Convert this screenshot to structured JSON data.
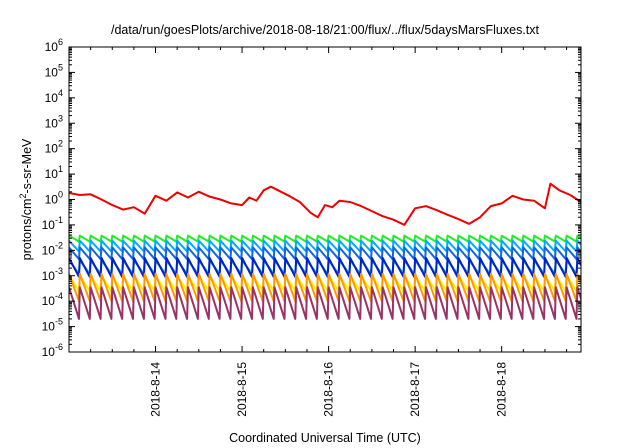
{
  "chart_data": {
    "type": "line",
    "title": "/data/run/goesPlots/archive/2018-08-18/21:00/flux/../flux/5daysMarsFluxes.txt",
    "xlabel": "Coordinated Universal Time (UTC)",
    "ylabel": {
      "prefix": "protons/cm",
      "sup": "2",
      "suffix": "-s-sr-MeV"
    },
    "x_scale": "time",
    "xlim": [
      "2018-08-13 00:00",
      "2018-08-18 22:00"
    ],
    "x_tick_labels": [
      "2018-8-14",
      "2018-8-15",
      "2018-8-16",
      "2018-8-17",
      "2018-8-18"
    ],
    "y_scale": "log",
    "ylim": [
      1e-06,
      1000000.0
    ],
    "y_tick_labels": [
      {
        "base": "10",
        "exp": "-6"
      },
      {
        "base": "10",
        "exp": "-5"
      },
      {
        "base": "10",
        "exp": "-4"
      },
      {
        "base": "10",
        "exp": "-3"
      },
      {
        "base": "10",
        "exp": "-2"
      },
      {
        "base": "10",
        "exp": "-1"
      },
      {
        "base": "10",
        "exp": "0"
      },
      {
        "base": "10",
        "exp": "1"
      },
      {
        "base": "10",
        "exp": "2"
      },
      {
        "base": "10",
        "exp": "3"
      },
      {
        "base": "10",
        "exp": "4"
      },
      {
        "base": "10",
        "exp": "5"
      },
      {
        "base": "10",
        "exp": "6"
      }
    ],
    "grid": false,
    "legend": "none",
    "series": [
      {
        "color": "#ee0000",
        "style": "smooth",
        "points": [
          [
            "2018-08-13 00:00",
            1.8
          ],
          [
            "2018-08-13 03:00",
            1.5
          ],
          [
            "2018-08-13 06:00",
            1.6
          ],
          [
            "2018-08-13 09:00",
            1.0
          ],
          [
            "2018-08-13 12:00",
            0.6
          ],
          [
            "2018-08-13 15:00",
            0.4
          ],
          [
            "2018-08-13 18:00",
            0.5
          ],
          [
            "2018-08-13 21:00",
            0.28
          ],
          [
            "2018-08-14 00:00",
            1.4
          ],
          [
            "2018-08-14 03:00",
            0.9
          ],
          [
            "2018-08-14 06:00",
            1.9
          ],
          [
            "2018-08-14 09:00",
            1.2
          ],
          [
            "2018-08-14 12:00",
            2.0
          ],
          [
            "2018-08-14 15:00",
            1.3
          ],
          [
            "2018-08-14 18:00",
            1.0
          ],
          [
            "2018-08-14 21:00",
            0.7
          ],
          [
            "2018-08-15 00:00",
            0.6
          ],
          [
            "2018-08-15 02:00",
            1.2
          ],
          [
            "2018-08-15 04:00",
            0.9
          ],
          [
            "2018-08-15 06:00",
            2.3
          ],
          [
            "2018-08-15 08:00",
            3.2
          ],
          [
            "2018-08-15 10:00",
            2.3
          ],
          [
            "2018-08-15 13:00",
            1.4
          ],
          [
            "2018-08-15 16:00",
            0.8
          ],
          [
            "2018-08-15 19:00",
            0.3
          ],
          [
            "2018-08-15 21:00",
            0.2
          ],
          [
            "2018-08-15 23:00",
            0.6
          ],
          [
            "2018-08-16 01:00",
            0.5
          ],
          [
            "2018-08-16 03:00",
            0.9
          ],
          [
            "2018-08-16 06:00",
            0.8
          ],
          [
            "2018-08-16 09:00",
            0.55
          ],
          [
            "2018-08-16 12:00",
            0.35
          ],
          [
            "2018-08-16 15:00",
            0.22
          ],
          [
            "2018-08-16 18:00",
            0.16
          ],
          [
            "2018-08-16 21:00",
            0.1
          ],
          [
            "2018-08-17 00:00",
            0.45
          ],
          [
            "2018-08-17 03:00",
            0.55
          ],
          [
            "2018-08-17 06:00",
            0.38
          ],
          [
            "2018-08-17 09:00",
            0.25
          ],
          [
            "2018-08-17 12:00",
            0.17
          ],
          [
            "2018-08-17 15:00",
            0.11
          ],
          [
            "2018-08-17 18:00",
            0.2
          ],
          [
            "2018-08-17 21:00",
            0.55
          ],
          [
            "2018-08-18 00:00",
            0.7
          ],
          [
            "2018-08-18 03:00",
            1.4
          ],
          [
            "2018-08-18 06:00",
            1.0
          ],
          [
            "2018-08-18 09:00",
            0.9
          ],
          [
            "2018-08-18 12:00",
            0.45
          ],
          [
            "2018-08-18 13:30",
            4.2
          ],
          [
            "2018-08-18 16:00",
            2.3
          ],
          [
            "2018-08-18 19:00",
            1.5
          ],
          [
            "2018-08-18 22:00",
            0.8
          ]
        ]
      },
      {
        "color": "#22ee22",
        "style": "sawtooth",
        "start": "2018-08-13 00:00",
        "period_hours": 3,
        "high": 0.038,
        "low": 0.022
      },
      {
        "color": "#00aaff",
        "style": "sawtooth",
        "start": "2018-08-13 00:00",
        "period_hours": 3,
        "high": 0.024,
        "low": 0.009
      },
      {
        "color": "#1166dd",
        "style": "sawtooth",
        "start": "2018-08-13 00:00",
        "period_hours": 3,
        "high": 0.013,
        "low": 0.0045
      },
      {
        "color": "#22bbaa",
        "style": "sawtooth",
        "start": "2018-08-13 00:00",
        "period_hours": 3,
        "high": 0.004,
        "low": 0.0012
      },
      {
        "color": "#0022cc",
        "style": "sawtooth",
        "start": "2018-08-13 00:00",
        "period_hours": 3,
        "high": 0.005,
        "low": 0.0009
      },
      {
        "color": "#ffee00",
        "style": "sawtooth",
        "start": "2018-08-13 00:00",
        "period_hours": 3,
        "high": 0.001,
        "low": 0.00025
      },
      {
        "color": "#ff9900",
        "style": "sawtooth",
        "start": "2018-08-13 00:00",
        "period_hours": 3,
        "high": 0.0012,
        "low": 0.0001
      },
      {
        "color": "#993366",
        "style": "sawtooth",
        "start": "2018-08-13 00:00",
        "period_hours": 3,
        "high": 0.00035,
        "low": 2e-05
      }
    ]
  }
}
